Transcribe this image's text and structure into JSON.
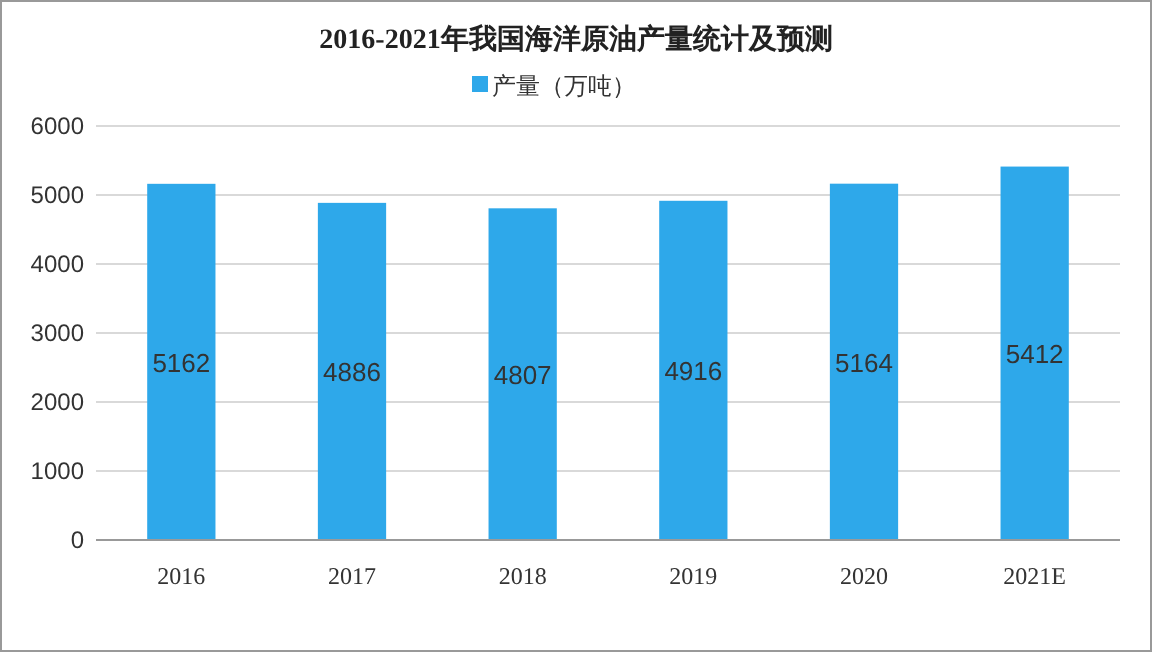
{
  "chart_data": {
    "type": "bar",
    "title": "2016-2021年我国海洋原油产量统计及预测",
    "categories": [
      "2016",
      "2017",
      "2018",
      "2019",
      "2020",
      "2021E"
    ],
    "series": [
      {
        "name": "产量（万吨）",
        "color": "#2ea8ea",
        "values": [
          5162,
          4886,
          4807,
          4916,
          5164,
          5412
        ]
      }
    ],
    "ylim": [
      0,
      6000
    ],
    "yticks": [
      0,
      1000,
      2000,
      3000,
      4000,
      5000,
      6000
    ],
    "grid": "y",
    "legend": "top",
    "data_labels": true
  }
}
